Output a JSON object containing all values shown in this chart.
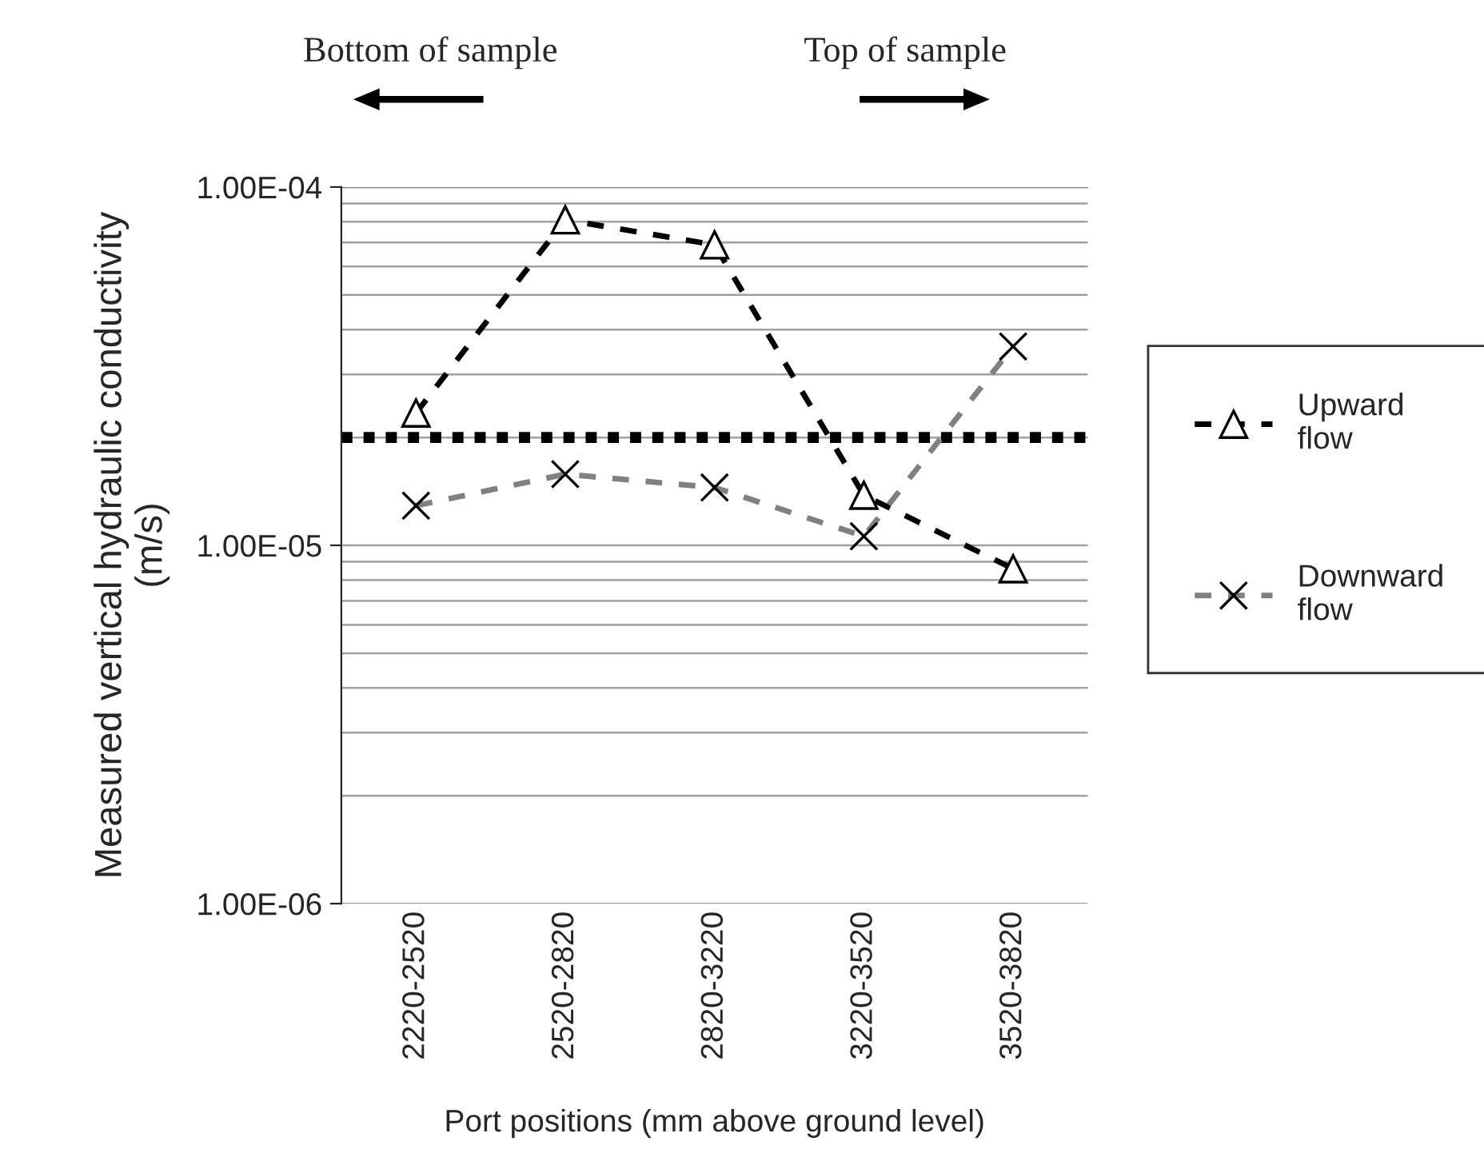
{
  "chart_data": {
    "type": "line",
    "xlabel": "Port positions (mm above ground level)",
    "ylabel": "Measured vertical hydraulic conductivity\n(m/s)",
    "categories": [
      "2220-2520",
      "2520-2820",
      "2820-3220",
      "3220-3520",
      "3520-3820"
    ],
    "series": [
      {
        "name": "Upward\nflow",
        "color": "#000000",
        "marker": "triangle",
        "line_style": "dashed",
        "values": [
          2.34e-05,
          8.1e-05,
          6.9e-05,
          1.38e-05,
          8.6e-06
        ]
      },
      {
        "name": "Downward\nflow",
        "color": "#808080",
        "marker": "cross",
        "line_style": "dashed",
        "values": [
          1.29e-05,
          1.58e-05,
          1.45e-05,
          1.06e-05,
          3.59e-05
        ]
      }
    ],
    "log": "y",
    "ylim": [
      1e-06,
      0.0001
    ],
    "yticks": [
      {
        "value": 1e-06,
        "label": "1.00E-06"
      },
      {
        "value": 1e-05,
        "label": "1.00E-05"
      },
      {
        "value": 0.0001,
        "label": "1.00E-04"
      }
    ],
    "grid": "y",
    "legend": "right",
    "ref_lines": [
      {
        "axis": "y",
        "value": 2e-05,
        "color": "#000000",
        "line_style": "dotted"
      }
    ],
    "annotations": [
      "Bottom of sample",
      "Top of sample"
    ]
  }
}
